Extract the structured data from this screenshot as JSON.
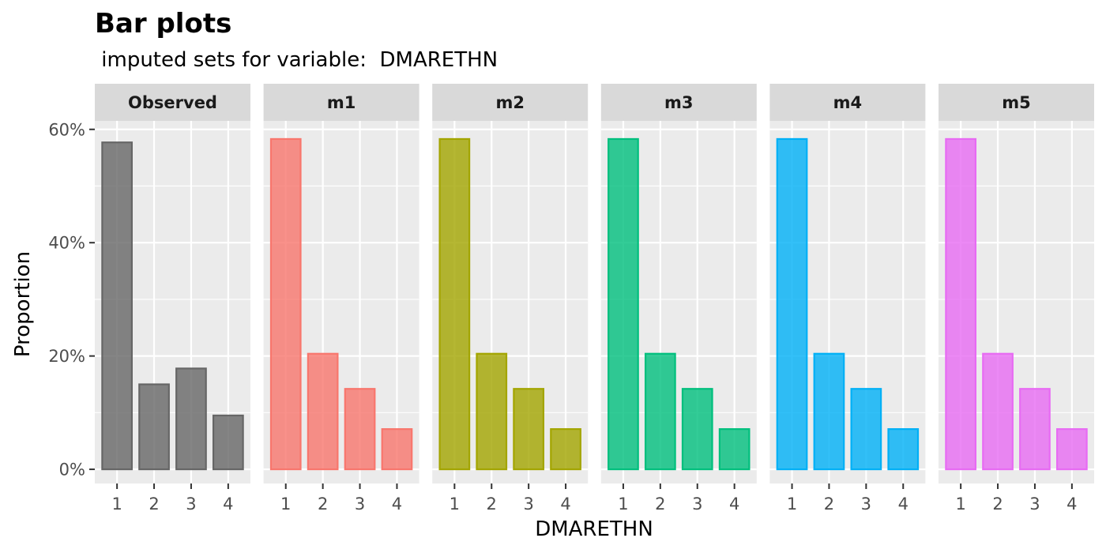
{
  "chart_data": {
    "type": "bar",
    "title": "Bar plots",
    "subtitle": " imputed sets for variable:  DMARETHN",
    "xlabel": "DMARETHN",
    "ylabel": "Proportion",
    "categories": [
      "1",
      "2",
      "3",
      "4"
    ],
    "ylim": [
      -0.025,
      0.615
    ],
    "y_ticks": [
      0,
      0.2,
      0.4,
      0.6
    ],
    "y_tick_labels": [
      "0%",
      "20%",
      "40%",
      "60%"
    ],
    "grid": true,
    "legend": "none",
    "facets": [
      {
        "name": "Observed",
        "color": "#666666",
        "values": [
          0.577,
          0.15,
          0.178,
          0.095
        ]
      },
      {
        "name": "m1",
        "color": "#F8766D",
        "values": [
          0.583,
          0.204,
          0.142,
          0.071
        ]
      },
      {
        "name": "m2",
        "color": "#A3A500",
        "values": [
          0.583,
          0.204,
          0.142,
          0.071
        ]
      },
      {
        "name": "m3",
        "color": "#00BF7D",
        "values": [
          0.583,
          0.204,
          0.142,
          0.071
        ]
      },
      {
        "name": "m4",
        "color": "#00B0F6",
        "values": [
          0.583,
          0.204,
          0.142,
          0.071
        ]
      },
      {
        "name": "m5",
        "color": "#E76BF3",
        "values": [
          0.583,
          0.204,
          0.142,
          0.071
        ]
      }
    ]
  }
}
